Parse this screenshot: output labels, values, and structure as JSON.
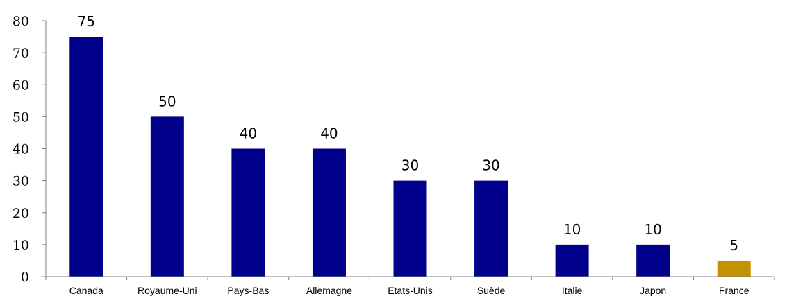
{
  "chart_data": {
    "type": "bar",
    "categories": [
      "Canada",
      "Royaume-Uni",
      "Pays-Bas",
      "Allemagne",
      "Etats-Unis",
      "Suède",
      "Italie",
      "Japon",
      "France"
    ],
    "values": [
      75,
      50,
      40,
      40,
      30,
      30,
      10,
      10,
      5
    ],
    "bar_colors": [
      "#00008b",
      "#00008b",
      "#00008b",
      "#00008b",
      "#00008b",
      "#00008b",
      "#00008b",
      "#00008b",
      "#c39200"
    ],
    "data_labels": [
      "75",
      "50",
      "40",
      "40",
      "30",
      "30",
      "10",
      "10",
      "5"
    ],
    "title": "",
    "xlabel": "",
    "ylabel": "",
    "ylim": [
      0,
      80
    ],
    "yticks": [
      0,
      10,
      20,
      30,
      40,
      50,
      60,
      70,
      80
    ],
    "grid": false,
    "legend": false
  }
}
